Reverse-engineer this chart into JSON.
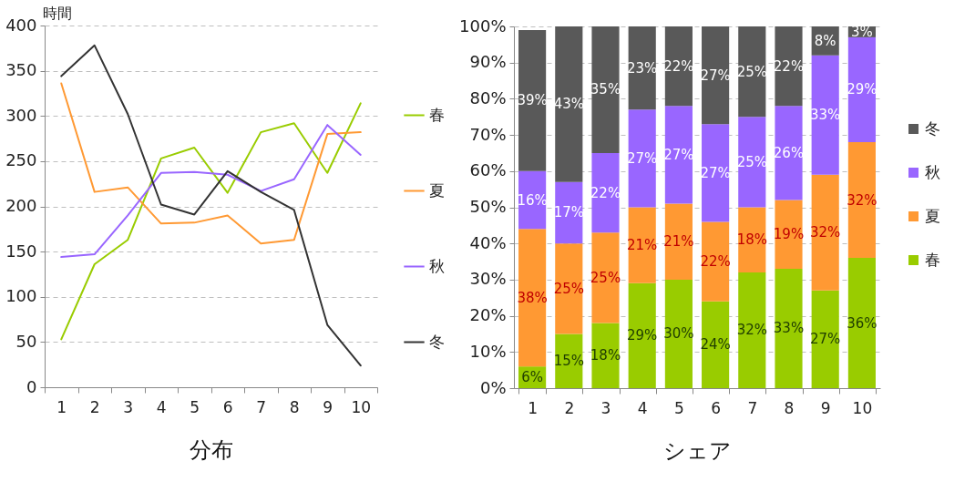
{
  "chart_data": [
    {
      "type": "line",
      "title": "分布",
      "ylabel": "時間",
      "categories": [
        "1",
        "2",
        "3",
        "4",
        "5",
        "6",
        "7",
        "8",
        "9",
        "10"
      ],
      "series": [
        {
          "name": "春",
          "color": "#99cc00",
          "values": [
            53,
            136,
            163,
            253,
            265,
            215,
            282,
            292,
            237,
            314
          ]
        },
        {
          "name": "夏",
          "color": "#ff9933",
          "values": [
            336,
            216,
            221,
            181,
            182,
            190,
            159,
            163,
            280,
            282
          ]
        },
        {
          "name": "秋",
          "color": "#9966ff",
          "values": [
            144,
            147,
            190,
            237,
            238,
            235,
            217,
            230,
            290,
            257
          ]
        },
        {
          "name": "冬",
          "color": "#333333",
          "values": [
            344,
            378,
            302,
            202,
            191,
            239,
            216,
            196,
            69,
            24
          ]
        }
      ],
      "ylim": [
        0,
        400
      ],
      "yticks": [
        0,
        50,
        100,
        150,
        200,
        250,
        300,
        350,
        400
      ],
      "grid": "y",
      "legend": "right"
    },
    {
      "type": "bar",
      "title": "シェア",
      "stacked": true,
      "categories": [
        "1",
        "2",
        "3",
        "4",
        "5",
        "6",
        "7",
        "8",
        "9",
        "10"
      ],
      "series": [
        {
          "name": "春",
          "color": "#99cc00",
          "values": [
            6,
            15,
            18,
            29,
            30,
            24,
            32,
            33,
            27,
            36
          ],
          "value_labels": [
            "6%",
            "15%",
            "18%",
            "29%",
            "30%",
            "24%",
            "32%",
            "33%",
            "27%",
            "36%"
          ]
        },
        {
          "name": "夏",
          "color": "#ff9933",
          "values": [
            38,
            25,
            25,
            21,
            21,
            22,
            18,
            19,
            32,
            32
          ],
          "value_labels": [
            "38%",
            "25%",
            "25%",
            "21%",
            "21%",
            "22%",
            "18%",
            "19%",
            "32%",
            "32%"
          ]
        },
        {
          "name": "秋",
          "color": "#9966ff",
          "values": [
            16,
            17,
            22,
            27,
            27,
            27,
            25,
            26,
            33,
            29
          ],
          "value_labels": [
            "16%",
            "17%",
            "22%",
            "27%",
            "27%",
            "27%",
            "25%",
            "26%",
            "33%",
            "29%"
          ]
        },
        {
          "name": "冬",
          "color": "#595959",
          "values": [
            39,
            43,
            35,
            23,
            22,
            27,
            25,
            22,
            8,
            3
          ],
          "value_labels": [
            "39%",
            "43%",
            "35%",
            "23%",
            "22%",
            "27%",
            "25%",
            "22%",
            "8%",
            "3%"
          ]
        }
      ],
      "ylim": [
        0,
        100
      ],
      "yticks": [
        {
          "value": 0,
          "label": "0%"
        },
        {
          "value": 10,
          "label": "10%"
        },
        {
          "value": 20,
          "label": "20%"
        },
        {
          "value": 30,
          "label": "30%"
        },
        {
          "value": 40,
          "label": "40%"
        },
        {
          "value": 50,
          "label": "50%"
        },
        {
          "value": 60,
          "label": "60%"
        },
        {
          "value": 70,
          "label": "70%"
        },
        {
          "value": 80,
          "label": "80%"
        },
        {
          "value": 90,
          "label": "90%"
        },
        {
          "value": 100,
          "label": "100%"
        }
      ],
      "grid": "y",
      "legend": "right"
    }
  ]
}
